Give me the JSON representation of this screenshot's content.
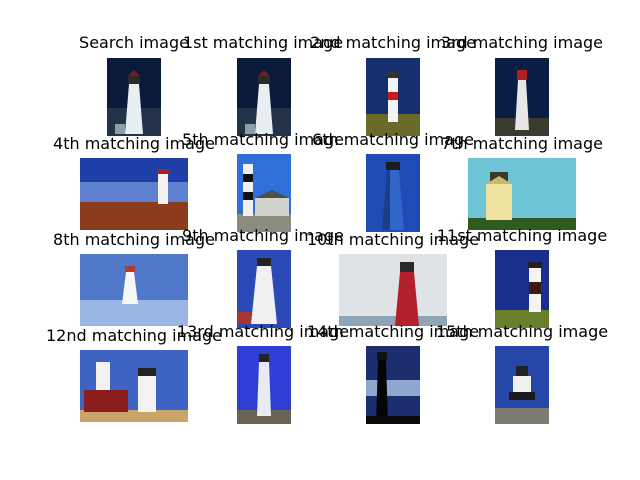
{
  "figure": {
    "tiles": [
      {
        "title": "Search image",
        "picture": "lighthouse-dark-sky"
      },
      {
        "title": "1st matching image",
        "picture": "lighthouse-dark-sky"
      },
      {
        "title": "2nd matching image",
        "picture": "lighthouse-red-band"
      },
      {
        "title": "3rd matching image",
        "picture": "lighthouse-red-lantern"
      },
      {
        "title": "4th matching image",
        "picture": "lighthouse-coast-sunset"
      },
      {
        "title": "5th matching image",
        "picture": "lighthouse-striped-with-house"
      },
      {
        "title": "6th matching image",
        "picture": "lighthouse-blue-tower"
      },
      {
        "title": "7th matching image",
        "picture": "lighthouse-yellow"
      },
      {
        "title": "8th matching image",
        "picture": "lighthouse-bay"
      },
      {
        "title": "9th matching image",
        "picture": "lighthouse-white-tower"
      },
      {
        "title": "10th matching image",
        "picture": "lighthouse-red-tower"
      },
      {
        "title": "11st matching image",
        "picture": "lighthouse-brown-band"
      },
      {
        "title": "12nd matching image",
        "picture": "lighthouse-red-houses"
      },
      {
        "title": "13rd matching image",
        "picture": "lighthouse-blue-sky"
      },
      {
        "title": "14th matching image",
        "picture": "lighthouse-silhouette"
      },
      {
        "title": "15th matching image",
        "picture": "lighthouse-on-rocks"
      }
    ]
  }
}
